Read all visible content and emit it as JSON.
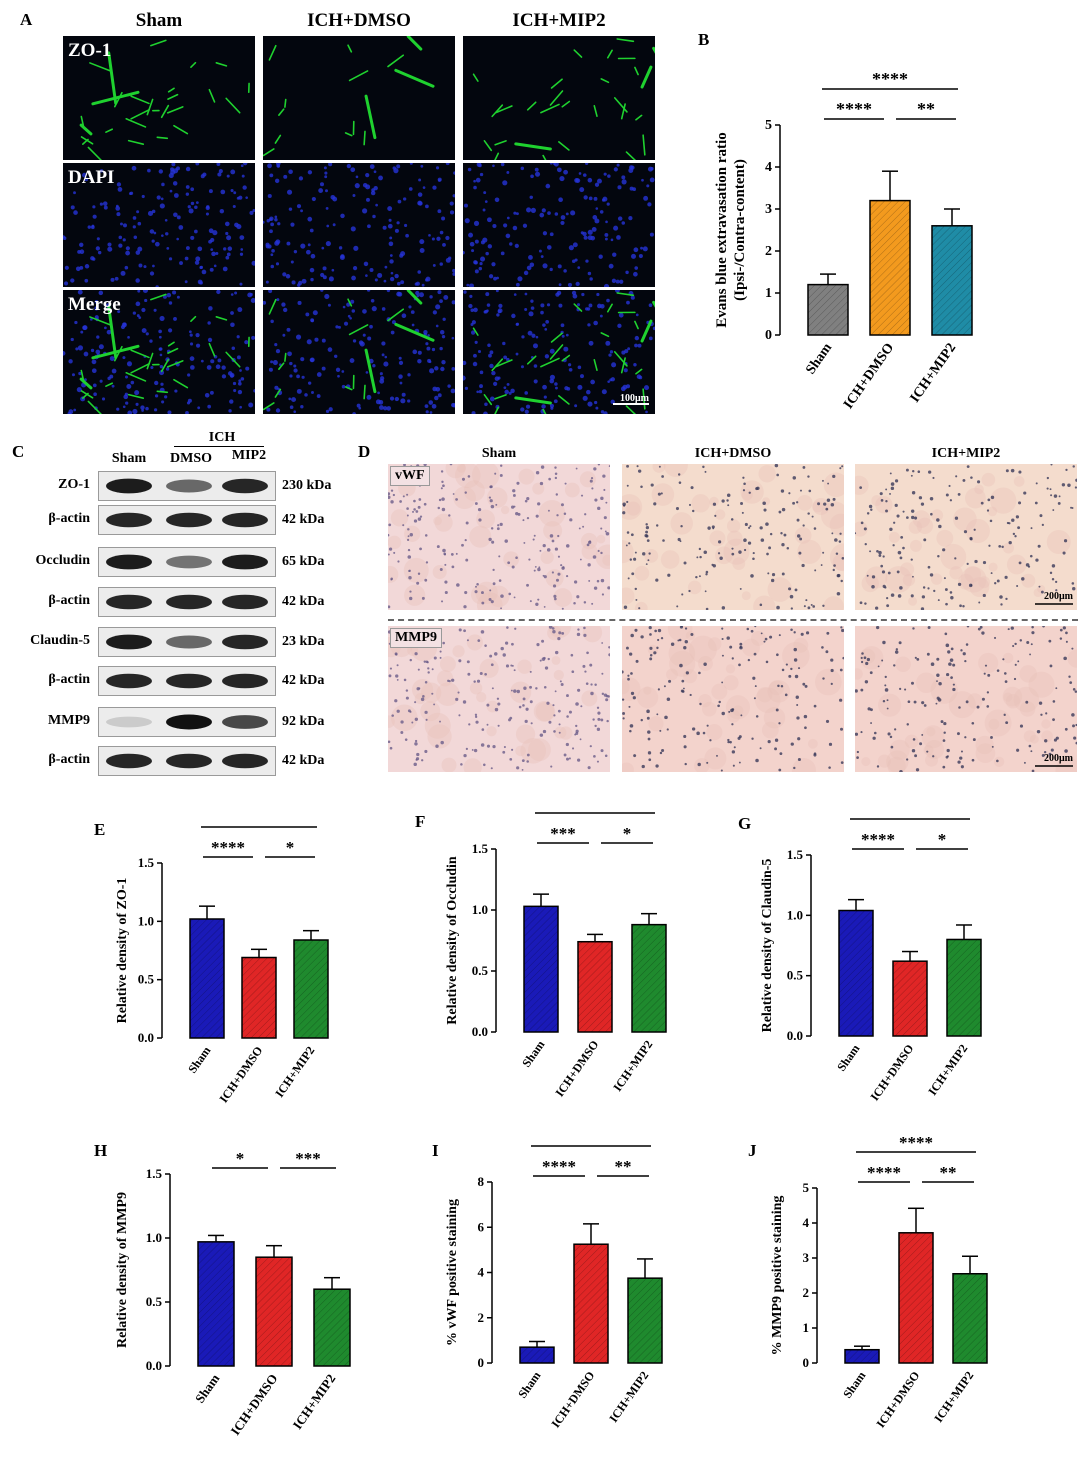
{
  "panels": {
    "A": {
      "letter": "A",
      "groups": [
        "Sham",
        "ICH+DMSO",
        "ICH+MIP2"
      ],
      "rows": [
        "ZO-1",
        "DAPI",
        "Merge"
      ],
      "scale_bar": "100μm",
      "colors": {
        "zo1": "#1fd12f",
        "dapi": "#2533d8",
        "bg": "#03060e"
      }
    },
    "C": {
      "letter": "C",
      "group_top": "ICH",
      "lanes": [
        "Sham",
        "DMSO",
        "MIP2"
      ],
      "blots": [
        {
          "name": "ZO-1",
          "kda": "230 kDa",
          "intensity": [
            0.95,
            0.6,
            0.9
          ]
        },
        {
          "name": "β-actin",
          "kda": "42 kDa",
          "intensity": [
            0.9,
            0.9,
            0.9
          ]
        },
        {
          "name": "Occludin",
          "kda": "65 kDa",
          "intensity": [
            0.95,
            0.55,
            0.95
          ]
        },
        {
          "name": "β-actin",
          "kda": "42 kDa",
          "intensity": [
            0.9,
            0.9,
            0.9
          ]
        },
        {
          "name": "Claudin-5",
          "kda": "23 kDa",
          "intensity": [
            0.95,
            0.6,
            0.9
          ]
        },
        {
          "name": "β-actin",
          "kda": "42 kDa",
          "intensity": [
            0.9,
            0.9,
            0.9
          ]
        },
        {
          "name": "MMP9",
          "kda": "92 kDa",
          "intensity": [
            0.15,
            1.0,
            0.75
          ]
        },
        {
          "name": "β-actin",
          "kda": "42 kDa",
          "intensity": [
            0.9,
            0.9,
            0.9
          ]
        }
      ]
    },
    "D": {
      "letter": "D",
      "groups": [
        "Sham",
        "ICH+DMSO",
        "ICH+MIP2"
      ],
      "rows": [
        "vWF",
        "MMP9"
      ],
      "scale_bar": "200μm",
      "colors": {
        "stain": "#f1d2cd",
        "nuclei": "#3a3a5a"
      }
    }
  },
  "chart_data": [
    {
      "panel": "B",
      "type": "bar",
      "categories": [
        "Sham",
        "ICH+DMSO",
        "ICH+MIP2"
      ],
      "values": [
        1.2,
        3.2,
        2.6
      ],
      "errors": [
        0.25,
        0.7,
        0.4
      ],
      "ylabel": "Evans blue extravasation ratio",
      "ylabel2": "(Ipsi-/Contra-content)",
      "ylim": [
        0,
        5
      ],
      "yticks": [
        "0",
        "1",
        "2",
        "3",
        "4",
        "5"
      ],
      "colors": [
        "#808080",
        "#f39a1e",
        "#1f8ca6"
      ],
      "hatched": true,
      "sig": [
        {
          "from": 0,
          "to": 2,
          "label": "****"
        },
        {
          "from": 0,
          "to": 1,
          "label": "****"
        },
        {
          "from": 1,
          "to": 2,
          "label": "**"
        }
      ]
    },
    {
      "panel": "E",
      "type": "bar",
      "categories": [
        "Sham",
        "ICH+DMSO",
        "ICH+MIP2"
      ],
      "values": [
        1.02,
        0.69,
        0.84
      ],
      "errors": [
        0.11,
        0.07,
        0.08
      ],
      "ylabel": "Relative density of ZO-1",
      "ylim": [
        0,
        1.5
      ],
      "yticks": [
        "0.0",
        "0.5",
        "1.0",
        "1.5"
      ],
      "colors": [
        "#1a1ab8",
        "#e02626",
        "#1f8a2e"
      ],
      "hatched": true,
      "sig": [
        {
          "from": 0,
          "to": 2,
          "label": "*"
        },
        {
          "from": 0,
          "to": 1,
          "label": "****"
        },
        {
          "from": 1,
          "to": 2,
          "label": "*"
        }
      ]
    },
    {
      "panel": "F",
      "type": "bar",
      "categories": [
        "Sham",
        "ICH+DMSO",
        "ICH+MIP2"
      ],
      "values": [
        1.03,
        0.74,
        0.88
      ],
      "errors": [
        0.1,
        0.06,
        0.09
      ],
      "ylabel": "Relative density of  Occludin",
      "ylim": [
        0,
        1.5
      ],
      "yticks": [
        "0.0",
        "0.5",
        "1.0",
        "1.5"
      ],
      "colors": [
        "#1a1ab8",
        "#e02626",
        "#1f8a2e"
      ],
      "hatched": true,
      "sig": [
        {
          "from": 0,
          "to": 2,
          "label": "*"
        },
        {
          "from": 0,
          "to": 1,
          "label": "***"
        },
        {
          "from": 1,
          "to": 2,
          "label": "*"
        }
      ]
    },
    {
      "panel": "G",
      "type": "bar",
      "categories": [
        "Sham",
        "ICH+DMSO",
        "ICH+MIP2"
      ],
      "values": [
        1.04,
        0.62,
        0.8
      ],
      "errors": [
        0.09,
        0.08,
        0.12
      ],
      "ylabel": "Relative density of Claudin-5",
      "ylim": [
        0,
        1.5
      ],
      "yticks": [
        "0.0",
        "0.5",
        "1.0",
        "1.5"
      ],
      "colors": [
        "#1a1ab8",
        "#e02626",
        "#1f8a2e"
      ],
      "hatched": true,
      "sig": [
        {
          "from": 0,
          "to": 2,
          "label": "**"
        },
        {
          "from": 0,
          "to": 1,
          "label": "****"
        },
        {
          "from": 1,
          "to": 2,
          "label": "*"
        }
      ]
    },
    {
      "panel": "H",
      "type": "bar",
      "categories": [
        "Sham",
        "ICH+DMSO",
        "ICH+MIP2"
      ],
      "values": [
        0.97,
        0.85,
        0.6
      ],
      "errors": [
        0.05,
        0.09,
        0.09
      ],
      "ylabel": "Relative density of MMP9",
      "ylim": [
        0,
        1.5
      ],
      "yticks": [
        "0.0",
        "0.5",
        "1.0",
        "1.5"
      ],
      "colors": [
        "#1a1ab8",
        "#e02626",
        "#1f8a2e"
      ],
      "hatched": true,
      "sig": [
        {
          "from": 0,
          "to": 2,
          "label": "****"
        },
        {
          "from": 0,
          "to": 1,
          "label": "*"
        },
        {
          "from": 1,
          "to": 2,
          "label": "***"
        }
      ]
    },
    {
      "panel": "I",
      "type": "bar",
      "categories": [
        "Sham",
        "ICH+DMSO",
        "ICH+MIP2"
      ],
      "values": [
        0.7,
        5.25,
        3.75
      ],
      "errors": [
        0.25,
        0.9,
        0.85
      ],
      "ylabel": "% vWF positive staining",
      "ylim": [
        0,
        8
      ],
      "yticks": [
        "0",
        "2",
        "4",
        "6",
        "8"
      ],
      "colors": [
        "#1a1ab8",
        "#e02626",
        "#1f8a2e"
      ],
      "hatched": true,
      "sig": [
        {
          "from": 0,
          "to": 2,
          "label": "****"
        },
        {
          "from": 0,
          "to": 1,
          "label": "****"
        },
        {
          "from": 1,
          "to": 2,
          "label": "**"
        }
      ]
    },
    {
      "panel": "J",
      "type": "bar",
      "categories": [
        "Sham",
        "ICH+DMSO",
        "ICH+MIP2"
      ],
      "values": [
        0.38,
        3.72,
        2.55
      ],
      "errors": [
        0.1,
        0.7,
        0.5
      ],
      "ylabel": "% MMP9 positive staining",
      "ylim": [
        0,
        5
      ],
      "yticks": [
        "0",
        "1",
        "2",
        "3",
        "4",
        "5"
      ],
      "colors": [
        "#1a1ab8",
        "#e02626",
        "#1f8a2e"
      ],
      "hatched": true,
      "sig": [
        {
          "from": 0,
          "to": 2,
          "label": "****"
        },
        {
          "from": 0,
          "to": 1,
          "label": "****"
        },
        {
          "from": 1,
          "to": 2,
          "label": "**"
        }
      ]
    }
  ]
}
